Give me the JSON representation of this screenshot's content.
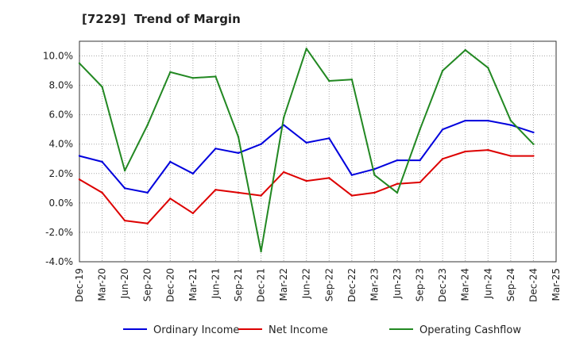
{
  "chart_data": {
    "type": "line",
    "title": "[7229]  Trend of Margin",
    "xlabel": "",
    "ylabel": "",
    "ylim": [
      -4.0,
      11.0
    ],
    "y_ticks": [
      "10.0%",
      "8.0%",
      "6.0%",
      "4.0%",
      "2.0%",
      "0.0%",
      "-2.0%",
      "-4.0%"
    ],
    "y_tick_values": [
      10,
      8,
      6,
      4,
      2,
      0,
      -2,
      -4
    ],
    "categories": [
      "Dec-19",
      "Mar-20",
      "Jun-20",
      "Sep-20",
      "Dec-20",
      "Mar-21",
      "Jun-21",
      "Sep-21",
      "Dec-21",
      "Mar-22",
      "Jun-22",
      "Sep-22",
      "Dec-22",
      "Mar-23",
      "Jun-23",
      "Sep-23",
      "Dec-23",
      "Mar-24",
      "Jun-24",
      "Sep-24",
      "Dec-24",
      "Mar-25"
    ],
    "grid": true,
    "legend_position": "bottom",
    "series": [
      {
        "name": "Ordinary Income",
        "color": "#0000dd",
        "values": [
          3.2,
          2.8,
          1.0,
          0.7,
          2.8,
          2.0,
          3.7,
          3.4,
          4.0,
          5.3,
          4.1,
          4.4,
          1.9,
          2.3,
          2.9,
          2.9,
          5.0,
          5.6,
          5.6,
          5.3,
          4.8,
          null
        ]
      },
      {
        "name": "Net Income",
        "color": "#dd0000",
        "values": [
          1.6,
          0.7,
          -1.2,
          -1.4,
          0.3,
          -0.7,
          0.9,
          0.7,
          0.5,
          2.1,
          1.5,
          1.7,
          0.5,
          0.7,
          1.3,
          1.4,
          3.0,
          3.5,
          3.6,
          3.2,
          3.2,
          null
        ]
      },
      {
        "name": "Operating Cashflow",
        "color": "#228822",
        "values": [
          9.5,
          7.9,
          2.2,
          5.3,
          8.9,
          8.5,
          8.6,
          4.5,
          -3.3,
          5.8,
          10.5,
          8.3,
          8.4,
          1.9,
          0.7,
          5.0,
          9.0,
          10.4,
          9.2,
          5.6,
          4.0,
          null
        ]
      }
    ]
  }
}
